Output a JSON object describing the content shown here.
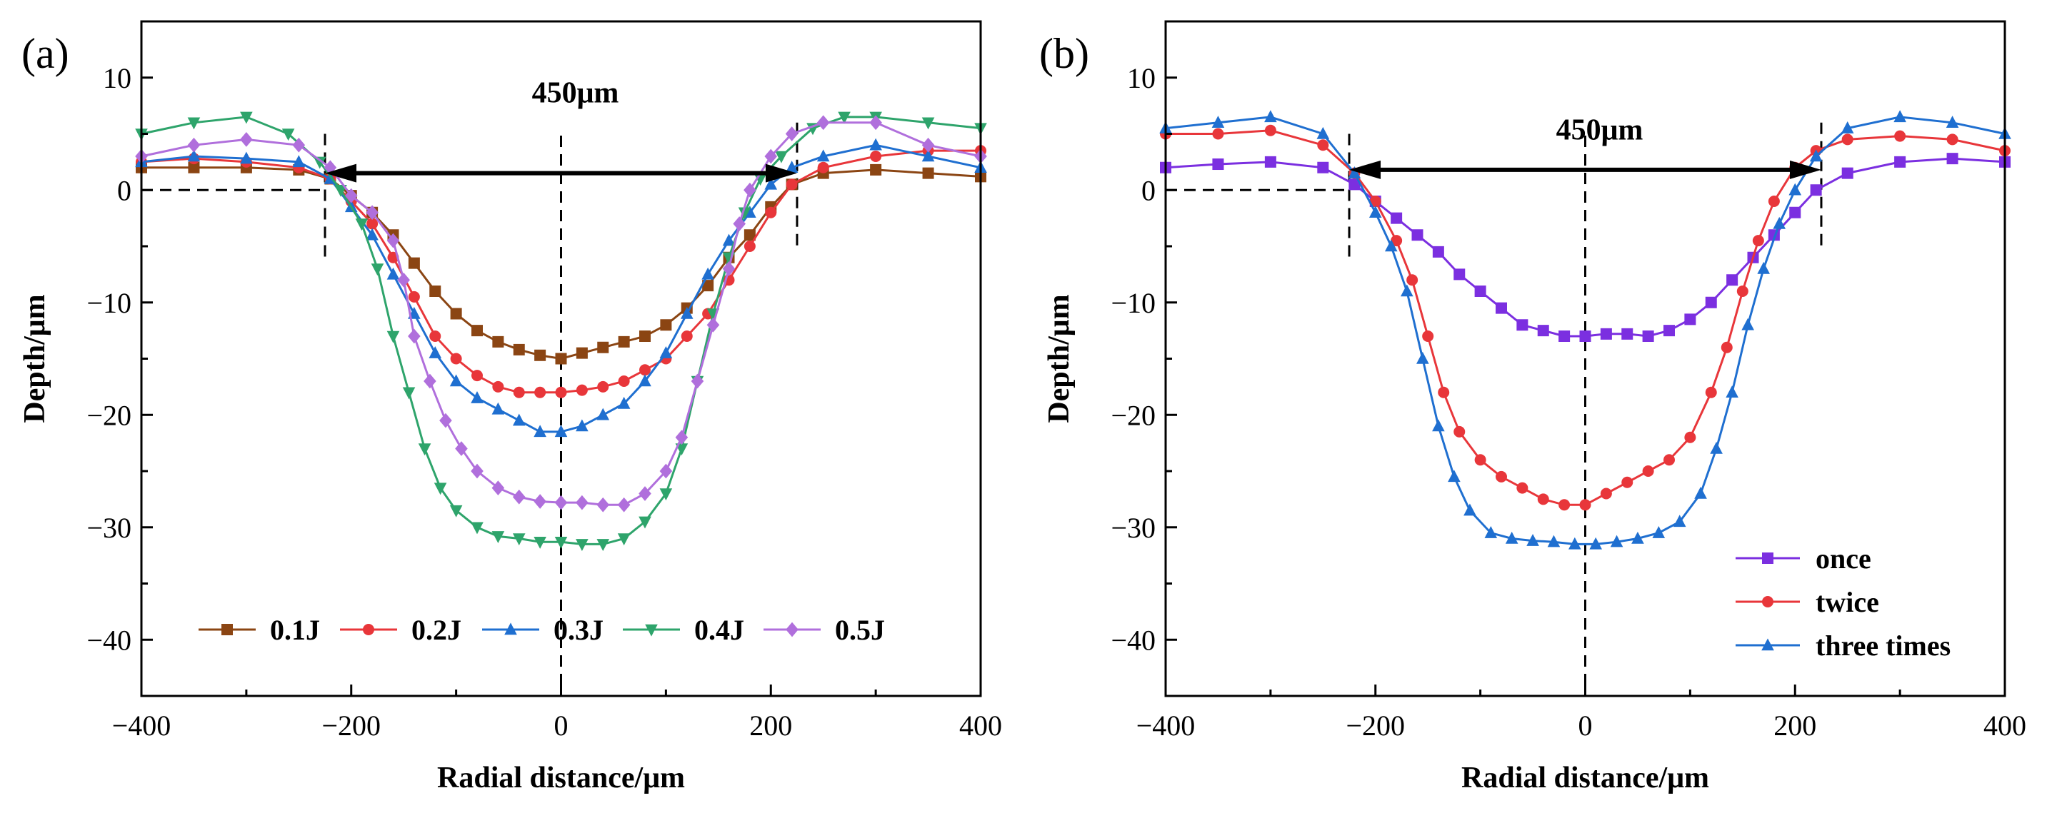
{
  "chart_data": [
    {
      "panel_label": "(a)",
      "type": "line",
      "xlabel": "Radial distance/μm",
      "ylabel": "Depth/μm",
      "xlim": [
        -400,
        400
      ],
      "ylim": [
        -45,
        15
      ],
      "xticks": [
        -400,
        -200,
        0,
        200,
        400
      ],
      "xtick_labels": [
        "−400",
        "−200",
        "0",
        "200",
        "400"
      ],
      "yticks": [
        10,
        0,
        -10,
        -20,
        -30,
        -40
      ],
      "ytick_labels": [
        "10",
        "0",
        "−10",
        "−20",
        "−30",
        "−40"
      ],
      "annotation": {
        "text": "450μm",
        "from_x": -225,
        "to_x": 225,
        "y": 1.5
      },
      "legend_position": "bottom-center",
      "series": [
        {
          "name": "0.1J",
          "color": "#8B4513",
          "marker": "square",
          "x": [
            -400,
            -350,
            -300,
            -250,
            -220,
            -200,
            -180,
            -160,
            -140,
            -120,
            -100,
            -80,
            -60,
            -40,
            -20,
            0,
            20,
            40,
            60,
            80,
            100,
            120,
            140,
            160,
            180,
            200,
            220,
            250,
            300,
            350,
            400
          ],
          "y": [
            2,
            2,
            2,
            1.8,
            1,
            -0.5,
            -2,
            -4,
            -6.5,
            -9,
            -11,
            -12.5,
            -13.5,
            -14.2,
            -14.7,
            -15,
            -14.5,
            -14,
            -13.5,
            -13,
            -12,
            -10.5,
            -8.5,
            -6,
            -4,
            -1.5,
            0.5,
            1.5,
            1.8,
            1.5,
            1.2
          ]
        },
        {
          "name": "0.2J",
          "color": "#E8363A",
          "marker": "circle",
          "x": [
            -400,
            -350,
            -300,
            -250,
            -220,
            -200,
            -180,
            -160,
            -140,
            -120,
            -100,
            -80,
            -60,
            -40,
            -20,
            0,
            20,
            40,
            60,
            80,
            100,
            120,
            140,
            160,
            180,
            200,
            220,
            250,
            300,
            350,
            400
          ],
          "y": [
            2.5,
            2.8,
            2.5,
            2,
            1,
            -1,
            -3,
            -6,
            -9.5,
            -13,
            -15,
            -16.5,
            -17.5,
            -18,
            -18,
            -18,
            -17.8,
            -17.5,
            -17,
            -16,
            -15,
            -13,
            -11,
            -8,
            -5,
            -2,
            0.5,
            2,
            3,
            3.5,
            3.5
          ]
        },
        {
          "name": "0.3J",
          "color": "#1F6FD0",
          "marker": "triangle-up",
          "x": [
            -400,
            -350,
            -300,
            -250,
            -220,
            -200,
            -180,
            -160,
            -140,
            -120,
            -100,
            -80,
            -60,
            -40,
            -20,
            0,
            20,
            40,
            60,
            80,
            100,
            120,
            140,
            160,
            180,
            200,
            220,
            250,
            300,
            350,
            400
          ],
          "y": [
            2.5,
            3,
            2.8,
            2.5,
            1,
            -1.5,
            -4,
            -7.5,
            -11,
            -14.5,
            -17,
            -18.5,
            -19.5,
            -20.5,
            -21.5,
            -21.5,
            -21,
            -20,
            -19,
            -17,
            -14.5,
            -11,
            -7.5,
            -4.5,
            -2,
            0.5,
            2,
            3,
            4,
            3,
            2
          ]
        },
        {
          "name": "0.4J",
          "color": "#2EA46B",
          "marker": "triangle-down",
          "x": [
            -400,
            -350,
            -300,
            -260,
            -230,
            -210,
            -190,
            -175,
            -160,
            -145,
            -130,
            -115,
            -100,
            -80,
            -60,
            -40,
            -20,
            0,
            20,
            40,
            60,
            80,
            100,
            115,
            130,
            145,
            160,
            175,
            190,
            210,
            240,
            270,
            300,
            350,
            400
          ],
          "y": [
            5,
            6,
            6.5,
            5,
            2.5,
            0,
            -3,
            -7,
            -13,
            -18,
            -23,
            -26.5,
            -28.5,
            -30,
            -30.8,
            -31,
            -31.3,
            -31.3,
            -31.5,
            -31.5,
            -31,
            -29.5,
            -27,
            -23,
            -17,
            -11,
            -6,
            -2,
            1,
            3,
            5.5,
            6.5,
            6.5,
            6,
            5.5
          ]
        },
        {
          "name": "0.5J",
          "color": "#B06FDC",
          "marker": "diamond",
          "x": [
            -400,
            -350,
            -300,
            -250,
            -220,
            -200,
            -180,
            -160,
            -150,
            -140,
            -125,
            -110,
            -95,
            -80,
            -60,
            -40,
            -20,
            0,
            20,
            40,
            60,
            80,
            100,
            115,
            130,
            145,
            160,
            170,
            180,
            200,
            220,
            250,
            300,
            350,
            400
          ],
          "y": [
            3,
            4,
            4.5,
            4,
            2,
            -0.5,
            -2,
            -4.5,
            -8,
            -13,
            -17,
            -20.5,
            -23,
            -25,
            -26.5,
            -27.3,
            -27.7,
            -27.8,
            -27.8,
            -28,
            -28,
            -27,
            -25,
            -22,
            -17,
            -12,
            -7,
            -3,
            0,
            3,
            5,
            6,
            6,
            4,
            3
          ]
        }
      ]
    },
    {
      "panel_label": "(b)",
      "type": "line",
      "xlabel": "Radial distance/μm",
      "ylabel": "Depth/μm",
      "xlim": [
        -400,
        400
      ],
      "ylim": [
        -45,
        15
      ],
      "xticks": [
        -400,
        -200,
        0,
        200,
        400
      ],
      "xtick_labels": [
        "−400",
        "−200",
        "0",
        "200",
        "400"
      ],
      "yticks": [
        10,
        0,
        -10,
        -20,
        -30,
        -40
      ],
      "ytick_labels": [
        "10",
        "0",
        "−10",
        "−20",
        "−30",
        "−40"
      ],
      "annotation": {
        "text": "450μm",
        "from_x": -225,
        "to_x": 225,
        "y": 1.8
      },
      "legend_position": "bottom-right",
      "series": [
        {
          "name": "once",
          "color": "#7B2FE0",
          "marker": "square",
          "x": [
            -400,
            -350,
            -300,
            -250,
            -220,
            -200,
            -180,
            -160,
            -140,
            -120,
            -100,
            -80,
            -60,
            -40,
            -20,
            0,
            20,
            40,
            60,
            80,
            100,
            120,
            140,
            160,
            180,
            200,
            220,
            250,
            300,
            350,
            400
          ],
          "y": [
            2,
            2.3,
            2.5,
            2,
            0.5,
            -1,
            -2.5,
            -4,
            -5.5,
            -7.5,
            -9,
            -10.5,
            -12,
            -12.5,
            -13,
            -13,
            -12.8,
            -12.8,
            -13,
            -12.5,
            -11.5,
            -10,
            -8,
            -6,
            -4,
            -2,
            0,
            1.5,
            2.5,
            2.8,
            2.5
          ]
        },
        {
          "name": "twice",
          "color": "#E8363A",
          "marker": "circle",
          "x": [
            -400,
            -350,
            -300,
            -250,
            -220,
            -200,
            -180,
            -165,
            -150,
            -135,
            -120,
            -100,
            -80,
            -60,
            -40,
            -20,
            0,
            20,
            40,
            60,
            80,
            100,
            120,
            135,
            150,
            165,
            180,
            200,
            220,
            250,
            300,
            350,
            400
          ],
          "y": [
            5,
            5,
            5.3,
            4,
            1.5,
            -1,
            -4.5,
            -8,
            -13,
            -18,
            -21.5,
            -24,
            -25.5,
            -26.5,
            -27.5,
            -28,
            -28,
            -27,
            -26,
            -25,
            -24,
            -22,
            -18,
            -14,
            -9,
            -4.5,
            -1,
            2,
            3.5,
            4.5,
            4.8,
            4.5,
            3.5
          ]
        },
        {
          "name": "three times",
          "color": "#1F6FD0",
          "marker": "triangle-up",
          "x": [
            -400,
            -350,
            -300,
            -250,
            -220,
            -200,
            -185,
            -170,
            -155,
            -140,
            -125,
            -110,
            -90,
            -70,
            -50,
            -30,
            -10,
            10,
            30,
            50,
            70,
            90,
            110,
            125,
            140,
            155,
            170,
            185,
            200,
            220,
            250,
            300,
            350,
            400
          ],
          "y": [
            5.5,
            6,
            6.5,
            5,
            1.5,
            -2,
            -5,
            -9,
            -15,
            -21,
            -25.5,
            -28.5,
            -30.5,
            -31,
            -31.2,
            -31.3,
            -31.5,
            -31.5,
            -31.3,
            -31,
            -30.5,
            -29.5,
            -27,
            -23,
            -18,
            -12,
            -7,
            -3,
            0,
            3,
            5.5,
            6.5,
            6,
            5
          ]
        }
      ]
    }
  ]
}
